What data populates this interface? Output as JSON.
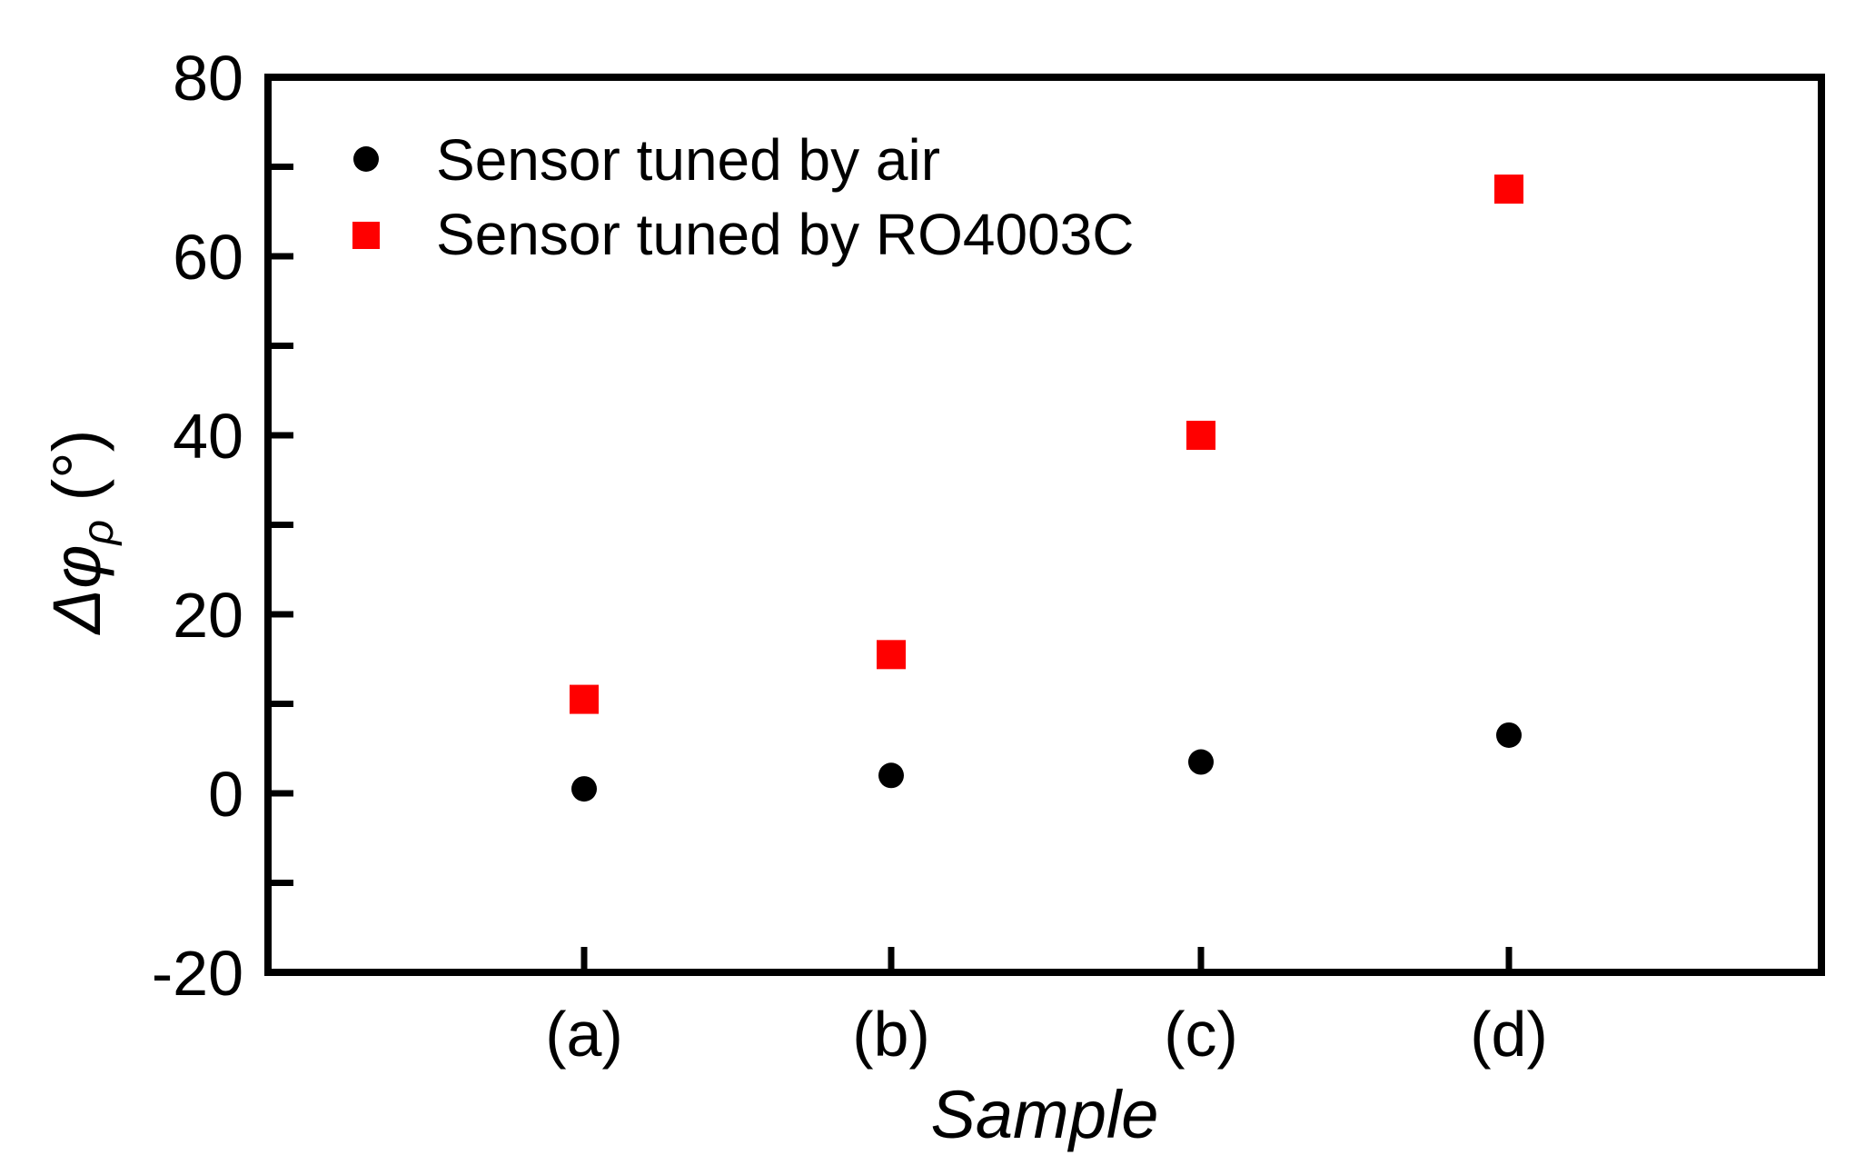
{
  "chart_data": {
    "type": "scatter",
    "title": "",
    "xlabel": "Sample",
    "ylabel": {
      "main": "Δφ",
      "subscript": "ρ",
      "unit": " (°)"
    },
    "categories": [
      "(a)",
      "(b)",
      "(c)",
      "(d)"
    ],
    "ylim": [
      -20,
      80
    ],
    "yticks": [
      -20,
      0,
      20,
      40,
      60,
      80
    ],
    "grid": false,
    "legend_position": "top-left",
    "series": [
      {
        "name": "Sensor tuned by air",
        "marker": "circle",
        "color": "#000000",
        "values": [
          0.5,
          2,
          3.5,
          6.5
        ]
      },
      {
        "name": "Sensor tuned by RO4003C",
        "marker": "square",
        "color": "#ff0000",
        "values": [
          10.5,
          15.5,
          40,
          67.5
        ]
      }
    ]
  }
}
